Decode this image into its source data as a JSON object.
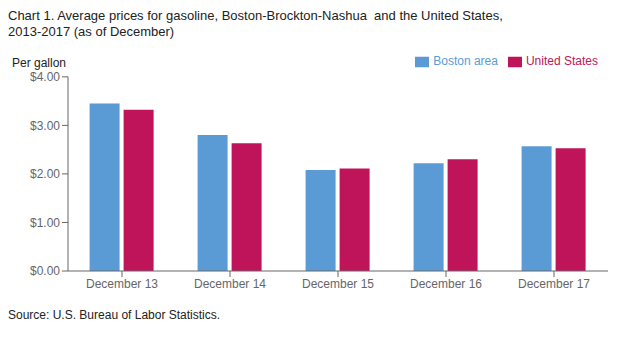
{
  "chart_data": {
    "type": "bar",
    "title": "Chart 1. Average prices for gasoline, Boston-Brockton-Nashua  and the United States,\n2013-2017 (as of December)",
    "y_label": "Per gallon",
    "annotations": [
      "Source: U.S. Bureau of Labor Statistics."
    ],
    "categories": [
      "December 13",
      "December 14",
      "December 15",
      "December 16",
      "December 17"
    ],
    "series": [
      {
        "name": "Boston area",
        "color": "#5B9BD5",
        "values": [
          3.45,
          2.8,
          2.08,
          2.22,
          2.57
        ]
      },
      {
        "name": "United States",
        "color": "#C0145A",
        "values": [
          3.32,
          2.63,
          2.11,
          2.3,
          2.53
        ]
      }
    ],
    "ylim": [
      0.0,
      4.0
    ],
    "yticks": [
      {
        "value": 0.0,
        "label": "$0.00"
      },
      {
        "value": 1.0,
        "label": "$1.00"
      },
      {
        "value": 2.0,
        "label": "$2.00"
      },
      {
        "value": 3.0,
        "label": "$3.00"
      },
      {
        "value": 4.0,
        "label": "$4.00"
      }
    ],
    "grid": false,
    "legend": "upper right"
  }
}
